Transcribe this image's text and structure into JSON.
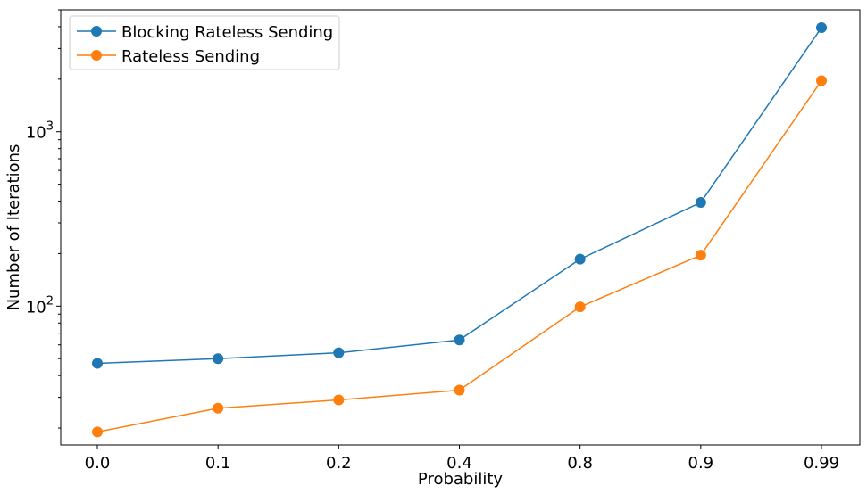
{
  "chart_data": {
    "type": "line",
    "title": "",
    "xlabel": "Probability",
    "ylabel": "Number of Iterations",
    "yscale": "log",
    "ylim": [
      16,
      5000
    ],
    "grid": false,
    "legend_position": "top-left",
    "categories": [
      "0.0",
      "0.1",
      "0.2",
      "0.4",
      "0.8",
      "0.9",
      "0.99"
    ],
    "y_ticks": [
      {
        "value": 100,
        "base": "10",
        "exponent": "2"
      },
      {
        "value": 1000,
        "base": "10",
        "exponent": "3"
      }
    ],
    "series": [
      {
        "name": "Blocking Rateless Sending",
        "color": "#1f77b4",
        "values": [
          47,
          50,
          54,
          64,
          186,
          393,
          3950
        ]
      },
      {
        "name": "Rateless Sending",
        "color": "#ff7f0e",
        "values": [
          19,
          26,
          29,
          33,
          99,
          196,
          1960
        ]
      }
    ]
  }
}
